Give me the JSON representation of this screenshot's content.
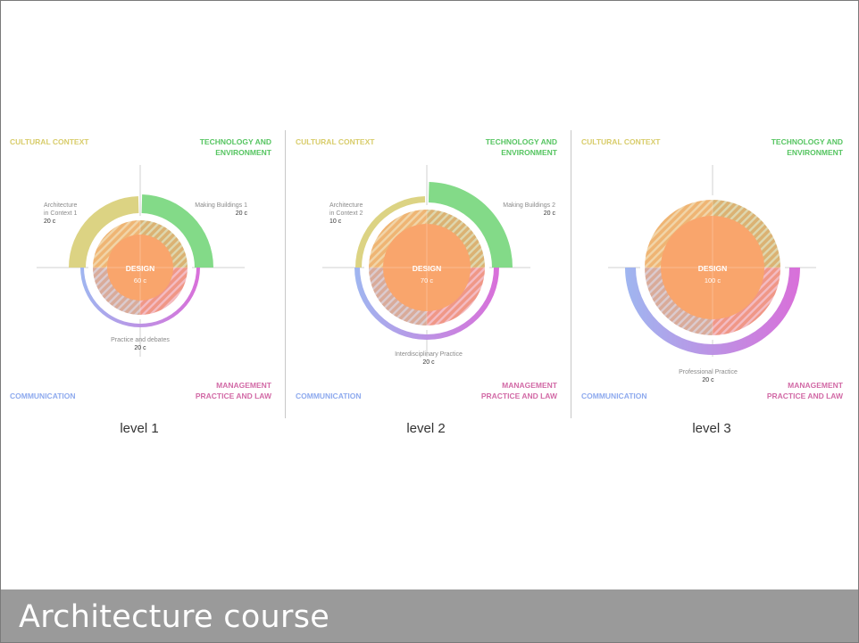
{
  "footer": {
    "title": "Architecture course"
  },
  "colors": {
    "cultural": "#dcd383",
    "technology": "#83da88",
    "communication": "#9fb6f0",
    "management": "#d96fd9",
    "design": "#f9a56c",
    "quad_label_cultural": "#d8cc6a",
    "quad_label_technology": "#56c561",
    "quad_label_communication": "#8eaaee",
    "quad_label_management": "#d26aa6"
  },
  "quadrant_labels": {
    "cultural": "CULTURAL CONTEXT",
    "technology_line1": "TECHNOLOGY AND",
    "technology_line2": "ENVIRONMENT",
    "communication": "COMMUNICATION",
    "management_line1": "MANAGEMENT",
    "management_line2": "PRACTICE AND LAW"
  },
  "levels": [
    {
      "caption": "level 1",
      "center": {
        "label": "DESIGN",
        "value": "60 c"
      },
      "modules": {
        "cultural": {
          "lines": [
            "Architecture",
            "in Context 1"
          ],
          "credits": "20 c"
        },
        "technology": {
          "lines": [
            "Making Buildings 1"
          ],
          "credits": "20 c"
        },
        "bottom": {
          "lines": [
            "Practice and debates"
          ],
          "credits": "20 c"
        }
      }
    },
    {
      "caption": "level 2",
      "center": {
        "label": "DESIGN",
        "value": "70 c"
      },
      "modules": {
        "cultural": {
          "lines": [
            "Architecture",
            "in Context 2"
          ],
          "credits": "10 c"
        },
        "technology": {
          "lines": [
            "Making Buildings 2"
          ],
          "credits": "20 c"
        },
        "bottom": {
          "lines": [
            "Interdisciplinary Practice"
          ],
          "credits": "20 c"
        }
      }
    },
    {
      "caption": "level 3",
      "center": {
        "label": "DESIGN",
        "value": "100 c"
      },
      "modules": {
        "bottom": {
          "lines": [
            "Professional Practice"
          ],
          "credits": "20 c"
        }
      }
    }
  ]
}
